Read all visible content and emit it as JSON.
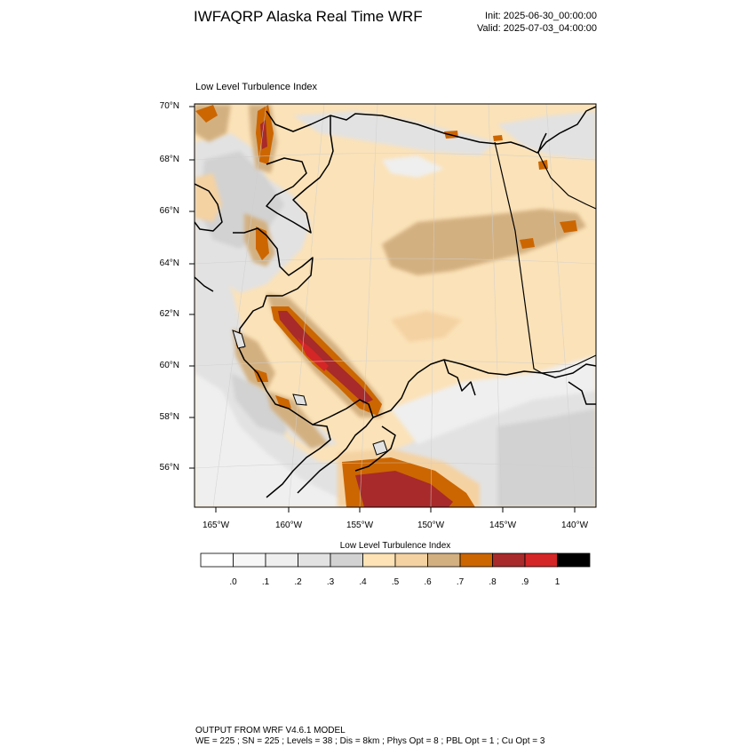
{
  "header": {
    "title": "IWFAQRP Alaska Real Time WRF",
    "init": "Init: 2025-06-30_00:00:00",
    "valid": "Valid: 2025-07-03_04:00:00"
  },
  "map": {
    "subtitle": "Low Level Turbulence Index",
    "lat_ticks": [
      "70°N",
      "68°N",
      "66°N",
      "64°N",
      "62°N",
      "60°N",
      "58°N",
      "56°N"
    ],
    "lon_ticks": [
      "165°W",
      "160°W",
      "155°W",
      "150°W",
      "145°W",
      "140°W"
    ],
    "colors": {
      "land_base": "#FBE2B8",
      "coastline": "#000000"
    }
  },
  "colorbar": {
    "title": "Low Level Turbulence Index",
    "labels": [
      ".0",
      ".1",
      ".2",
      ".3",
      ".4",
      ".5",
      ".6",
      ".7",
      ".8",
      ".9",
      "1"
    ],
    "colors": [
      "#FFFFFF",
      "#F7F7F7",
      "#EFEFEF",
      "#E2E2E2",
      "#D2D2D2",
      "#FDE3B5",
      "#F4D2A2",
      "#D3B080",
      "#CC6600",
      "#A82A2A",
      "#D42626",
      "#000000"
    ]
  },
  "footer": {
    "line1": "OUTPUT FROM WRF V4.6.1 MODEL",
    "line2": "WE = 225 ; SN = 225 ; Levels = 38 ; Dis = 8km ; Phys Opt = 8 ; PBL Opt = 1 ; Cu Opt = 3"
  }
}
